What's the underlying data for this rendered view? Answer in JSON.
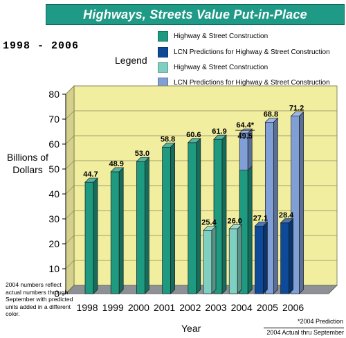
{
  "header": {
    "title": "Highways, Streets Value Put-in-Place",
    "years": "1998 - 2006"
  },
  "legend": {
    "title": "Legend",
    "items": [
      {
        "label": "Highway & Street Construction",
        "color": "#1e9a80"
      },
      {
        "label": "LCN Predictions for Highway & Street Construction",
        "color": "#0e4a9a"
      },
      {
        "label": "Highway & Street Construction",
        "color": "#7fd0c0"
      },
      {
        "label": "LCN Predictions for Highway & Street Construction",
        "color": "#7f9fd6"
      }
    ]
  },
  "notes": {
    "left": "2004 numbers reflect actual numbers through September with predicted units added in a different color.",
    "prediction": "*2004 Prediction",
    "actual": "2004 Actual thru September"
  },
  "colors": {
    "plot_bg": "#f2eea0",
    "floor": "#8d9196",
    "teal": "#1e9a80",
    "light_teal": "#7fd0c0",
    "blue": "#0e4a9a",
    "light_blue": "#7f9fd6"
  },
  "chart_data": {
    "type": "bar",
    "title": "Highways, Streets Value Put-in-Place",
    "xlabel": "Year",
    "ylabel": "Billions of Dollars",
    "ylim": [
      0,
      80
    ],
    "yticks": [
      "0",
      "10",
      "20",
      "30",
      "40",
      "50",
      "60",
      "70",
      "80"
    ],
    "grid": true,
    "categories": [
      "1998",
      "1999",
      "2000",
      "2001",
      "2002",
      "2003",
      "2004",
      "2005",
      "2006"
    ],
    "series": [
      {
        "name": "Highway & Street Construction",
        "values": [
          44.7,
          48.9,
          53.0,
          58.8,
          60.6,
          61.9,
          49.5,
          null,
          null
        ],
        "labels": [
          "44.7",
          "48.9",
          "53.0",
          "58.8",
          "60.6",
          "61.9",
          "49.5",
          "",
          ""
        ],
        "color": "#1e9a80"
      },
      {
        "name": "Highway & Street Construction",
        "values": [
          null,
          null,
          null,
          null,
          null,
          25.4,
          26.0,
          null,
          null
        ],
        "labels": [
          "",
          "",
          "",
          "",
          "",
          "25.4",
          "26.0",
          "",
          ""
        ],
        "color": "#7fd0c0"
      },
      {
        "name": "LCN Predictions for Highway & Street Construction",
        "values": [
          null,
          null,
          null,
          null,
          null,
          null,
          null,
          27.1,
          28.4
        ],
        "labels": [
          "",
          "",
          "",
          "",
          "",
          "",
          "",
          "27.1",
          "28.4"
        ],
        "color": "#0e4a9a"
      },
      {
        "name": "LCN Predictions for Highway & Street Construction",
        "values": [
          null,
          null,
          null,
          null,
          null,
          null,
          64.4,
          68.8,
          71.2
        ],
        "labels": [
          "",
          "",
          "",
          "",
          "",
          "",
          "64.4*",
          "68.8",
          "71.2"
        ],
        "color": "#7f9fd6"
      }
    ]
  }
}
